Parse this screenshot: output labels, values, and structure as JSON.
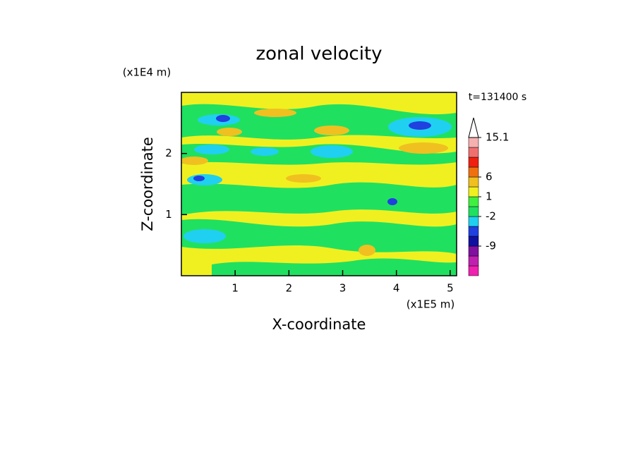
{
  "chart_data": {
    "type": "contour",
    "title": "zonal velocity",
    "x_label": "X-coordinate",
    "y_label": "Z-coordinate",
    "x_unit": "(x1E5 m)",
    "y_unit": "(x1E4 m)",
    "time_label": "t=131400 s",
    "xlim": [
      0,
      5.12
    ],
    "xticks": [
      1,
      2,
      3,
      4,
      5
    ],
    "ylim": [
      0,
      3
    ],
    "yticks": [
      1,
      2
    ],
    "colorbar": {
      "levels": [
        -18,
        -15,
        -12,
        -9,
        -6,
        -4,
        -2,
        -1,
        1,
        3,
        6,
        9,
        12,
        14,
        15.1
      ],
      "labels": [
        null,
        null,
        null,
        "-9",
        null,
        null,
        "-2",
        null,
        "1",
        null,
        "6",
        null,
        null,
        null,
        "15.1"
      ],
      "colors": [
        "#f020b0",
        "#c020b0",
        "#8010a0",
        "#1010a0",
        "#2040e0",
        "#20d0f0",
        "#20e060",
        "#40f040",
        "#f0f020",
        "#f0c020",
        "#f07010",
        "#f02010",
        "#f07070",
        "#f5b0b0"
      ]
    }
  }
}
